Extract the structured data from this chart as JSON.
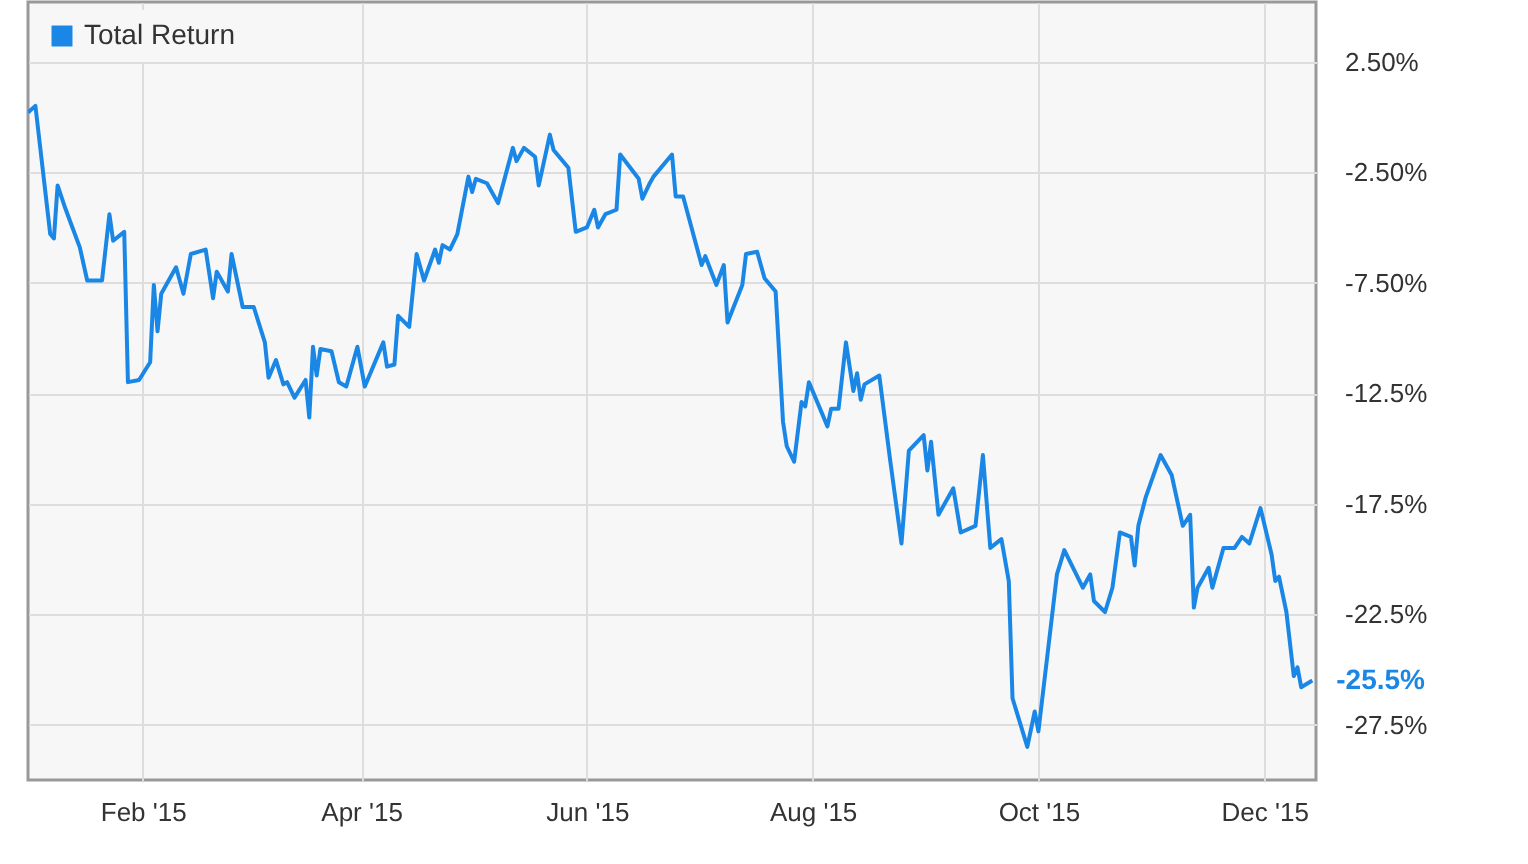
{
  "chart_data": {
    "type": "line",
    "x": [
      "2015-01-01",
      "2015-01-03",
      "2015-01-07",
      "2015-01-08",
      "2015-01-09",
      "2015-01-11",
      "2015-01-13",
      "2015-01-15",
      "2015-01-17",
      "2015-01-21",
      "2015-01-23",
      "2015-01-24",
      "2015-01-27",
      "2015-01-28",
      "2015-01-31",
      "2015-02-03",
      "2015-02-04",
      "2015-02-05",
      "2015-02-06",
      "2015-02-10",
      "2015-02-12",
      "2015-02-14",
      "2015-02-18",
      "2015-02-20",
      "2015-02-21",
      "2015-02-24",
      "2015-02-25",
      "2015-02-28",
      "2015-03-03",
      "2015-03-06",
      "2015-03-07",
      "2015-03-09",
      "2015-03-11",
      "2015-03-12",
      "2015-03-14",
      "2015-03-17",
      "2015-03-18",
      "2015-03-19",
      "2015-03-20",
      "2015-03-21",
      "2015-03-24",
      "2015-03-26",
      "2015-03-28",
      "2015-03-31",
      "2015-04-02",
      "2015-04-07",
      "2015-04-08",
      "2015-04-10",
      "2015-04-11",
      "2015-04-14",
      "2015-04-16",
      "2015-04-18",
      "2015-04-21",
      "2015-04-22",
      "2015-04-23",
      "2015-04-25",
      "2015-04-27",
      "2015-04-30",
      "2015-05-01",
      "2015-05-02",
      "2015-05-05",
      "2015-05-08",
      "2015-05-12",
      "2015-05-13",
      "2015-05-15",
      "2015-05-18",
      "2015-05-19",
      "2015-05-22",
      "2015-05-23",
      "2015-05-27",
      "2015-05-29",
      "2015-06-01",
      "2015-06-03",
      "2015-06-04",
      "2015-06-06",
      "2015-06-09",
      "2015-06-10",
      "2015-06-15",
      "2015-06-16",
      "2015-06-18",
      "2015-06-19",
      "2015-06-24",
      "2015-06-25",
      "2015-06-27",
      "2015-07-02",
      "2015-07-03",
      "2015-07-06",
      "2015-07-08",
      "2015-07-09",
      "2015-07-13",
      "2015-07-14",
      "2015-07-17",
      "2015-07-19",
      "2015-07-22",
      "2015-07-24",
      "2015-07-25",
      "2015-07-27",
      "2015-07-29",
      "2015-07-30",
      "2015-07-31",
      "2015-08-05",
      "2015-08-06",
      "2015-08-08",
      "2015-08-10",
      "2015-08-12",
      "2015-08-13",
      "2015-08-14",
      "2015-08-15",
      "2015-08-19",
      "2015-08-22",
      "2015-08-25",
      "2015-08-27",
      "2015-08-31",
      "2015-09-01",
      "2015-09-02",
      "2015-09-04",
      "2015-09-08",
      "2015-09-10",
      "2015-09-14",
      "2015-09-16",
      "2015-09-18",
      "2015-09-21",
      "2015-09-23",
      "2015-09-24",
      "2015-09-28",
      "2015-09-30",
      "2015-10-01",
      "2015-10-06",
      "2015-10-08",
      "2015-10-13",
      "2015-10-15",
      "2015-10-16",
      "2015-10-19",
      "2015-10-21",
      "2015-10-23",
      "2015-10-26",
      "2015-10-27",
      "2015-10-28",
      "2015-10-30",
      "2015-11-03",
      "2015-11-06",
      "2015-11-09",
      "2015-11-11",
      "2015-11-12",
      "2015-11-13",
      "2015-11-16",
      "2015-11-17",
      "2015-11-20",
      "2015-11-23",
      "2015-11-25",
      "2015-11-27",
      "2015-11-30",
      "2015-12-03",
      "2015-12-04",
      "2015-12-05",
      "2015-12-07",
      "2015-12-09",
      "2015-12-10",
      "2015-12-11",
      "2015-12-14"
    ],
    "series": [
      {
        "name": "Total Return",
        "color": "#1a87e6",
        "values": [
          0.2,
          0.5,
          -5.3,
          -5.5,
          -3.1,
          -4.1,
          -5.0,
          -5.9,
          -7.4,
          -7.4,
          -4.4,
          -5.6,
          -5.2,
          -12.0,
          -11.9,
          -11.1,
          -7.6,
          -9.7,
          -8.0,
          -6.8,
          -8.0,
          -6.2,
          -6.0,
          -8.2,
          -7.0,
          -7.9,
          -6.2,
          -8.6,
          -8.6,
          -10.2,
          -11.8,
          -11.0,
          -12.1,
          -12.0,
          -12.7,
          -11.9,
          -13.6,
          -10.4,
          -11.7,
          -10.5,
          -10.6,
          -12.0,
          -12.2,
          -10.4,
          -12.2,
          -10.2,
          -11.3,
          -11.2,
          -9.0,
          -9.5,
          -6.2,
          -7.4,
          -6.0,
          -6.6,
          -5.8,
          -6.0,
          -5.3,
          -2.7,
          -3.4,
          -2.8,
          -3.0,
          -3.9,
          -1.4,
          -2.0,
          -1.4,
          -1.8,
          -3.1,
          -0.8,
          -1.5,
          -2.3,
          -5.2,
          -5.0,
          -4.2,
          -5.0,
          -4.4,
          -4.2,
          -1.7,
          -2.8,
          -3.7,
          -3.0,
          -2.7,
          -1.7,
          -3.6,
          -3.6,
          -6.7,
          -6.3,
          -7.6,
          -6.7,
          -9.3,
          -7.6,
          -6.2,
          -6.1,
          -7.3,
          -7.9,
          -13.8,
          -14.9,
          -15.6,
          -12.9,
          -13.1,
          -12.0,
          -14.0,
          -13.2,
          -13.2,
          -10.2,
          -12.4,
          -11.6,
          -12.8,
          -12.1,
          -11.7,
          -15.6,
          -19.3,
          -15.1,
          -14.4,
          -16.0,
          -14.7,
          -18.0,
          -16.8,
          -18.8,
          -18.5,
          -15.3,
          -19.5,
          -19.1,
          -21.0,
          -26.3,
          -28.5,
          -26.9,
          -27.8,
          -20.7,
          -19.6,
          -21.3,
          -20.7,
          -21.9,
          -22.4,
          -21.3,
          -18.8,
          -19.0,
          -20.3,
          -18.5,
          -17.2,
          -15.3,
          -16.2,
          -18.5,
          -18.0,
          -22.2,
          -21.3,
          -20.4,
          -21.3,
          -19.5,
          -19.5,
          -19.0,
          -19.3,
          -17.7,
          -19.8,
          -21.0,
          -20.8,
          -22.4,
          -25.3,
          -24.9,
          -25.8,
          -25.5
        ]
      }
    ],
    "xlim": [
      "2015-01-01",
      "2015-12-15"
    ],
    "xticks": [
      {
        "value": "2015-02-01",
        "label": "Feb '15"
      },
      {
        "value": "2015-04-01",
        "label": "Apr '15"
      },
      {
        "value": "2015-06-01",
        "label": "Jun '15"
      },
      {
        "value": "2015-08-01",
        "label": "Aug '15"
      },
      {
        "value": "2015-10-01",
        "label": "Oct '15"
      },
      {
        "value": "2015-12-01",
        "label": "Dec '15"
      }
    ],
    "ylim": [
      -30,
      5.2
    ],
    "yticks": [
      {
        "value": 2.5,
        "label": "2.50%"
      },
      {
        "value": -2.5,
        "label": "-2.50%"
      },
      {
        "value": -7.5,
        "label": "-7.50%"
      },
      {
        "value": -12.5,
        "label": "-12.5%"
      },
      {
        "value": -17.5,
        "label": "-17.5%"
      },
      {
        "value": -22.5,
        "label": "-22.5%"
      },
      {
        "value": -27.5,
        "label": "-27.5%"
      }
    ],
    "grid": true,
    "legend": "top left",
    "annotations": [
      {
        "text": "-25.5%",
        "x": "2015-12-14",
        "y": -25.5
      }
    ]
  }
}
